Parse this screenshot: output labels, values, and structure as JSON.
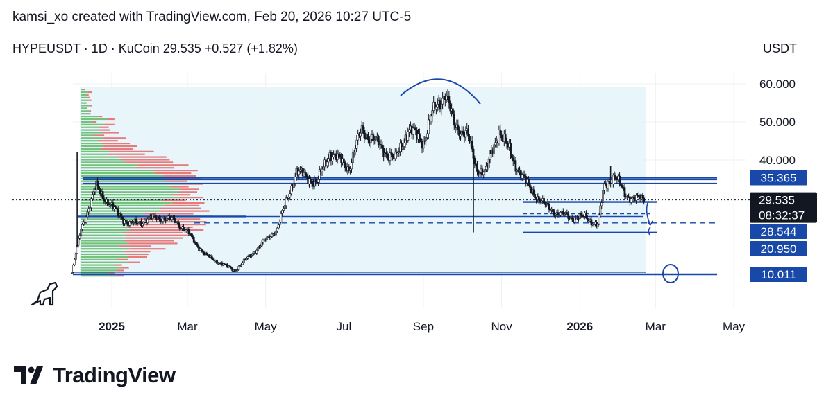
{
  "header": {
    "attribution": "kamsi_xo created with TradingView.com, Feb 20, 2026 10:27 UTC-5"
  },
  "symbol_line": {
    "symbol": "HYPEUSDT",
    "interval": "1D",
    "exchange": "KuCoin",
    "text": "HYPEUSDT · 1D · KuCoin  29.535  +0.527 (+1.82%)"
  },
  "currency": "USDT",
  "brand": {
    "name": "TradingView",
    "logo_icon": "tradingview-logo-icon"
  },
  "colors": {
    "candle": "#131722",
    "level_line": "#1848a8",
    "price_label_bg": "#1848a8",
    "current_label_bg": "#131722",
    "vp_up": "#4caf50",
    "vp_down": "#e53935",
    "range_fill": "#e8f6fb"
  },
  "chart_data": {
    "type": "candlestick",
    "title": "",
    "xlabel": "",
    "ylabel": "",
    "ylim": [
      0,
      67
    ],
    "y_ticks": [
      "60.000",
      "50.000",
      "40.000"
    ],
    "y_tick_values": [
      60,
      50,
      40
    ],
    "x_ticks": [
      {
        "label": "2025",
        "bold": true,
        "date": "2025-01-01"
      },
      {
        "label": "Mar",
        "bold": false,
        "date": "2025-03-01"
      },
      {
        "label": "May",
        "bold": false,
        "date": "2025-05-01"
      },
      {
        "label": "Jul",
        "bold": false,
        "date": "2025-07-01"
      },
      {
        "label": "Sep",
        "bold": false,
        "date": "2025-09-01"
      },
      {
        "label": "Nov",
        "bold": false,
        "date": "2025-11-01"
      },
      {
        "label": "2026",
        "bold": true,
        "date": "2026-01-01"
      },
      {
        "label": "Mar",
        "bold": false,
        "date": "2026-03-01"
      },
      {
        "label": "May",
        "bold": false,
        "date": "2026-05-01"
      }
    ],
    "x_range": [
      "2024-11-29",
      "2026-05-31"
    ],
    "price_close_series": [
      {
        "date": "2024-12-01",
        "close": 10.5
      },
      {
        "date": "2024-12-08",
        "close": 22.0
      },
      {
        "date": "2024-12-20",
        "close": 33.0
      },
      {
        "date": "2024-12-31",
        "close": 28.0
      },
      {
        "date": "2025-01-15",
        "close": 23.0
      },
      {
        "date": "2025-02-05",
        "close": 25.0
      },
      {
        "date": "2025-02-20",
        "close": 24.0
      },
      {
        "date": "2025-03-01",
        "close": 21.0
      },
      {
        "date": "2025-03-15",
        "close": 15.0
      },
      {
        "date": "2025-04-07",
        "close": 11.0
      },
      {
        "date": "2025-04-25",
        "close": 17.0
      },
      {
        "date": "2025-05-10",
        "close": 22.0
      },
      {
        "date": "2025-05-25",
        "close": 37.0
      },
      {
        "date": "2025-06-10",
        "close": 34.0
      },
      {
        "date": "2025-06-20",
        "close": 42.0
      },
      {
        "date": "2025-07-05",
        "close": 38.0
      },
      {
        "date": "2025-07-15",
        "close": 48.0
      },
      {
        "date": "2025-07-28",
        "close": 44.0
      },
      {
        "date": "2025-08-10",
        "close": 40.0
      },
      {
        "date": "2025-08-20",
        "close": 48.0
      },
      {
        "date": "2025-09-01",
        "close": 45.0
      },
      {
        "date": "2025-09-08",
        "close": 52.0
      },
      {
        "date": "2025-09-18",
        "close": 58.0
      },
      {
        "date": "2025-09-25",
        "close": 49.0
      },
      {
        "date": "2025-10-05",
        "close": 47.0
      },
      {
        "date": "2025-10-12",
        "close": 38.0
      },
      {
        "date": "2025-10-20",
        "close": 37.0
      },
      {
        "date": "2025-10-30",
        "close": 48.0
      },
      {
        "date": "2025-11-10",
        "close": 40.0
      },
      {
        "date": "2025-11-22",
        "close": 33.0
      },
      {
        "date": "2025-12-05",
        "close": 28.0
      },
      {
        "date": "2025-12-15",
        "close": 26.0
      },
      {
        "date": "2025-12-25",
        "close": 25.0
      },
      {
        "date": "2026-01-05",
        "close": 25.0
      },
      {
        "date": "2026-01-15",
        "close": 23.0
      },
      {
        "date": "2026-01-20",
        "close": 33.0
      },
      {
        "date": "2026-01-28",
        "close": 36.0
      },
      {
        "date": "2026-02-05",
        "close": 31.0
      },
      {
        "date": "2026-02-12",
        "close": 30.0
      },
      {
        "date": "2026-02-20",
        "close": 29.535
      }
    ],
    "spikes": [
      {
        "date": "2024-12-05",
        "high": 42.0
      },
      {
        "date": "2025-10-10",
        "low": 21.0
      },
      {
        "date": "2026-01-25",
        "high": 38.5
      }
    ],
    "levels": [
      {
        "value": 35.365,
        "label": "35.365",
        "style": "solid"
      },
      {
        "value": 28.544,
        "label": "28.544",
        "style": "solid"
      },
      {
        "value": 20.95,
        "label": "20.950",
        "style": "solid"
      },
      {
        "value": 10.011,
        "label": "10.011",
        "style": "solid"
      }
    ],
    "current_price": {
      "value": 29.535,
      "label": "29.535",
      "countdown": "08:32:37"
    },
    "annotations": [
      {
        "type": "arc",
        "description": "rounded top over Sep peak"
      },
      {
        "type": "circle",
        "at_value": 10.011,
        "date": "2026-02-25"
      },
      {
        "type": "arrow",
        "from": 29.535,
        "to": 20.95,
        "date": "2026-02-24"
      }
    ]
  }
}
